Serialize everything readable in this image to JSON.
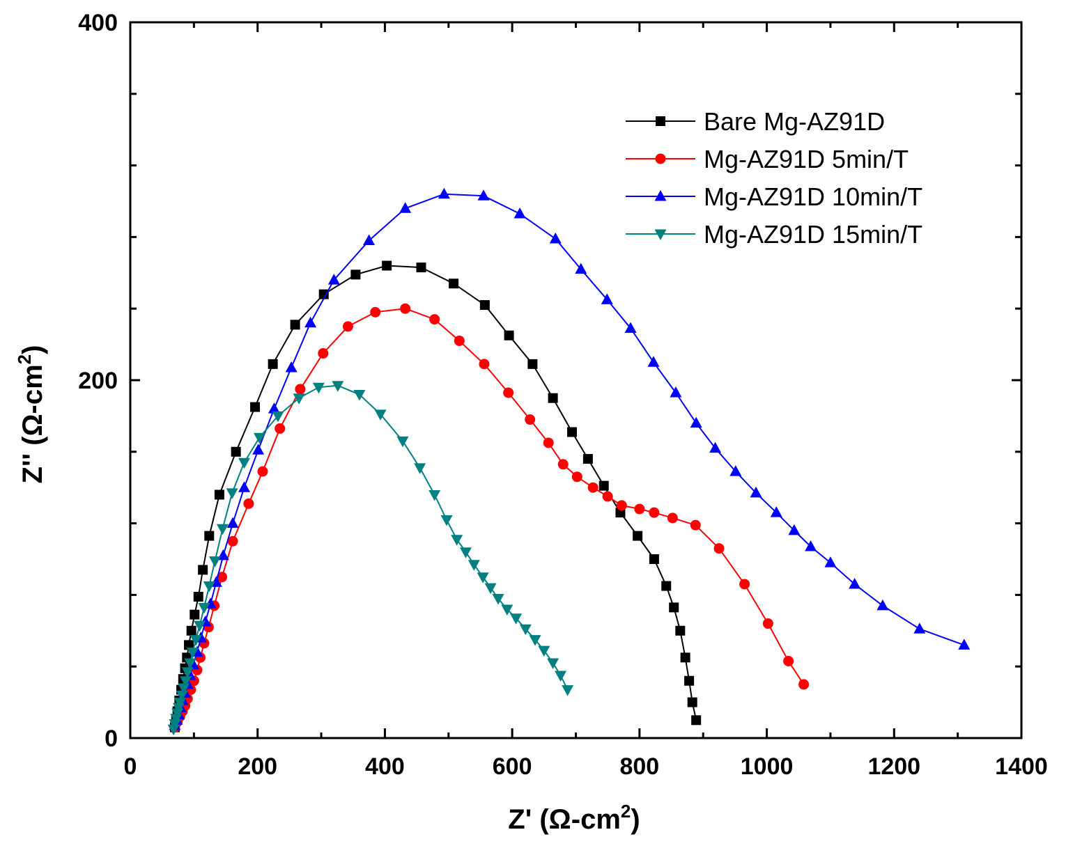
{
  "chart_data": {
    "type": "line",
    "title": "",
    "xlabel": {
      "prefix": "Z' (Ω-cm",
      "sup": "2",
      "suffix": ")"
    },
    "ylabel": {
      "prefix": "Z'' (Ω-cm",
      "sup": "2",
      "suffix": ")"
    },
    "xlim": [
      0,
      1400
    ],
    "ylim": [
      0,
      400
    ],
    "x_ticks": [
      0,
      200,
      400,
      600,
      800,
      1000,
      1200,
      1400
    ],
    "y_ticks": [
      0,
      200,
      400
    ],
    "grid": false,
    "legend_position": "top-right",
    "series": [
      {
        "name": "Bare Mg-AZ91D",
        "color": "#000000",
        "marker": "square",
        "points": [
          [
            70,
            6
          ],
          [
            72,
            10
          ],
          [
            74,
            15
          ],
          [
            77,
            21
          ],
          [
            80,
            27
          ],
          [
            83,
            33
          ],
          [
            86,
            39
          ],
          [
            89,
            45
          ],
          [
            92,
            52
          ],
          [
            96,
            60
          ],
          [
            101,
            69
          ],
          [
            107,
            79
          ],
          [
            114,
            94
          ],
          [
            124,
            113
          ],
          [
            140,
            136
          ],
          [
            166,
            160
          ],
          [
            196,
            185
          ],
          [
            224,
            209
          ],
          [
            259,
            231
          ],
          [
            304,
            248
          ],
          [
            354,
            259
          ],
          [
            403,
            264
          ],
          [
            457,
            263
          ],
          [
            508,
            254
          ],
          [
            557,
            242
          ],
          [
            595,
            225
          ],
          [
            632,
            209
          ],
          [
            664,
            190
          ],
          [
            694,
            171
          ],
          [
            719,
            156
          ],
          [
            744,
            141
          ],
          [
            770,
            126
          ],
          [
            797,
            113
          ],
          [
            823,
            100
          ],
          [
            842,
            85
          ],
          [
            854,
            73
          ],
          [
            864,
            60
          ],
          [
            872,
            45
          ],
          [
            878,
            32
          ],
          [
            883,
            20
          ],
          [
            889,
            10
          ]
        ]
      },
      {
        "name": "Mg-AZ91D 5min/T",
        "color": "#ff0000",
        "marker": "circle",
        "points": [
          [
            70,
            6
          ],
          [
            74,
            9
          ],
          [
            78,
            12
          ],
          [
            82,
            15
          ],
          [
            86,
            18
          ],
          [
            90,
            22
          ],
          [
            95,
            27
          ],
          [
            100,
            32
          ],
          [
            105,
            38
          ],
          [
            110,
            45
          ],
          [
            116,
            53
          ],
          [
            123,
            62
          ],
          [
            132,
            74
          ],
          [
            144,
            90
          ],
          [
            161,
            110
          ],
          [
            186,
            131
          ],
          [
            208,
            149
          ],
          [
            235,
            173
          ],
          [
            267,
            195
          ],
          [
            303,
            215
          ],
          [
            342,
            230
          ],
          [
            385,
            238
          ],
          [
            432,
            240
          ],
          [
            478,
            234
          ],
          [
            517,
            222
          ],
          [
            556,
            209
          ],
          [
            594,
            193
          ],
          [
            628,
            178
          ],
          [
            657,
            165
          ],
          [
            680,
            153
          ],
          [
            702,
            146
          ],
          [
            727,
            140
          ],
          [
            750,
            135
          ],
          [
            772,
            130
          ],
          [
            800,
            128
          ],
          [
            823,
            126
          ],
          [
            852,
            123
          ],
          [
            888,
            119
          ],
          [
            925,
            106
          ],
          [
            965,
            86
          ],
          [
            1002,
            64
          ],
          [
            1034,
            43
          ],
          [
            1058,
            30
          ]
        ]
      },
      {
        "name": "Mg-AZ91D 10min/T",
        "color": "#0000ff",
        "marker": "triangle-up",
        "points": [
          [
            70,
            7
          ],
          [
            73,
            10
          ],
          [
            76,
            13
          ],
          [
            79,
            17
          ],
          [
            82,
            21
          ],
          [
            86,
            25
          ],
          [
            90,
            30
          ],
          [
            94,
            35
          ],
          [
            99,
            41
          ],
          [
            105,
            48
          ],
          [
            111,
            56
          ],
          [
            118,
            65
          ],
          [
            126,
            75
          ],
          [
            135,
            87
          ],
          [
            146,
            102
          ],
          [
            161,
            120
          ],
          [
            179,
            140
          ],
          [
            201,
            161
          ],
          [
            226,
            184
          ],
          [
            253,
            207
          ],
          [
            283,
            232
          ],
          [
            320,
            256
          ],
          [
            375,
            278
          ],
          [
            432,
            296
          ],
          [
            493,
            304
          ],
          [
            555,
            303
          ],
          [
            612,
            293
          ],
          [
            668,
            279
          ],
          [
            708,
            262
          ],
          [
            749,
            245
          ],
          [
            786,
            229
          ],
          [
            822,
            210
          ],
          [
            857,
            193
          ],
          [
            889,
            176
          ],
          [
            919,
            162
          ],
          [
            951,
            149
          ],
          [
            983,
            137
          ],
          [
            1015,
            126
          ],
          [
            1043,
            116
          ],
          [
            1069,
            107
          ],
          [
            1100,
            98
          ],
          [
            1138,
            86
          ],
          [
            1182,
            74
          ],
          [
            1240,
            61
          ],
          [
            1310,
            52
          ]
        ]
      },
      {
        "name": "Mg-AZ91D 15min/T",
        "color": "#008080",
        "marker": "triangle-down",
        "points": [
          [
            68,
            5
          ],
          [
            70,
            8
          ],
          [
            72,
            11
          ],
          [
            74,
            14
          ],
          [
            76,
            17
          ],
          [
            78,
            20
          ],
          [
            81,
            24
          ],
          [
            84,
            28
          ],
          [
            87,
            32
          ],
          [
            90,
            37
          ],
          [
            94,
            42
          ],
          [
            98,
            48
          ],
          [
            103,
            55
          ],
          [
            109,
            63
          ],
          [
            116,
            73
          ],
          [
            124,
            85
          ],
          [
            133,
            99
          ],
          [
            145,
            117
          ],
          [
            160,
            137
          ],
          [
            179,
            154
          ],
          [
            203,
            168
          ],
          [
            232,
            180
          ],
          [
            265,
            190
          ],
          [
            296,
            196
          ],
          [
            326,
            197
          ],
          [
            360,
            192
          ],
          [
            393,
            181
          ],
          [
            428,
            166
          ],
          [
            455,
            151
          ],
          [
            478,
            136
          ],
          [
            497,
            122
          ],
          [
            513,
            111
          ],
          [
            527,
            104
          ],
          [
            540,
            97
          ],
          [
            554,
            90
          ],
          [
            566,
            84
          ],
          [
            578,
            78
          ],
          [
            592,
            72
          ],
          [
            606,
            67
          ],
          [
            621,
            61
          ],
          [
            636,
            55
          ],
          [
            650,
            49
          ],
          [
            664,
            42
          ],
          [
            676,
            35
          ],
          [
            687,
            27
          ]
        ]
      }
    ]
  }
}
